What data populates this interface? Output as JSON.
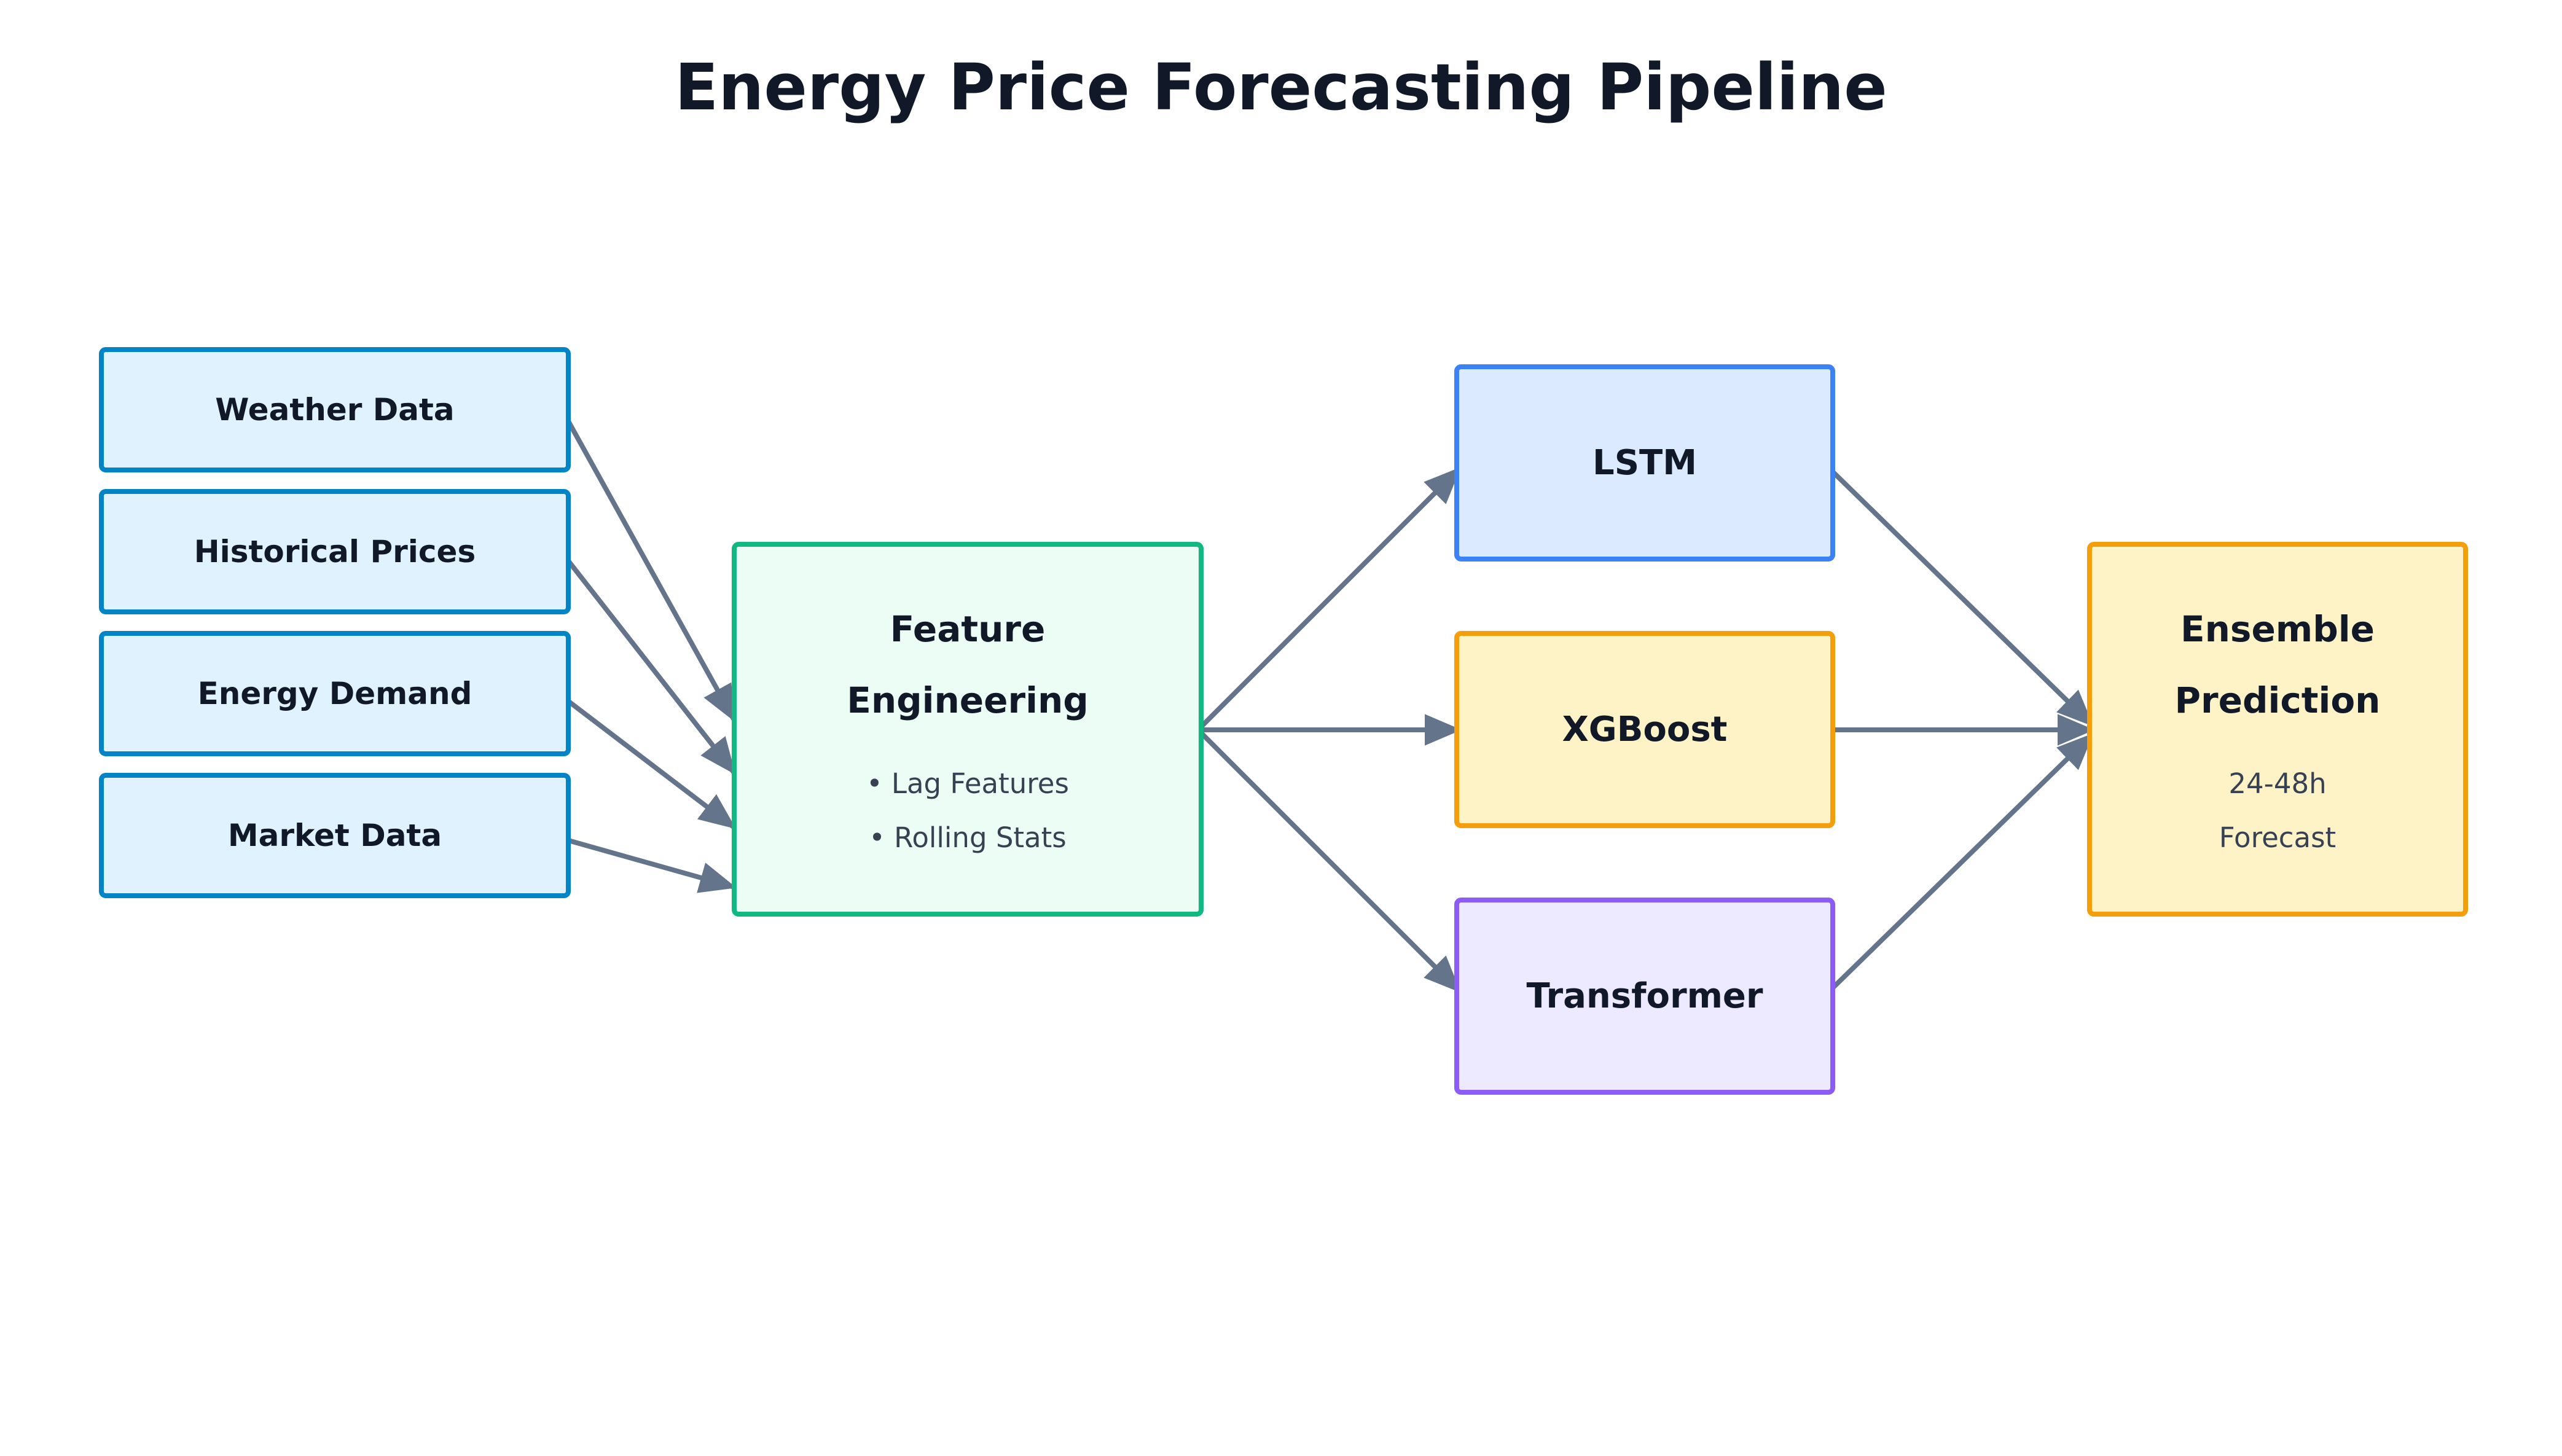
{
  "title": "Energy Price Forecasting Pipeline",
  "sources": [
    {
      "label": "Weather Data"
    },
    {
      "label": "Historical Prices"
    },
    {
      "label": "Energy Demand"
    },
    {
      "label": "Market Data"
    }
  ],
  "feature": {
    "lines": [
      "Feature",
      "Engineering"
    ],
    "details": [
      "• Lag Features",
      "• Rolling Stats"
    ]
  },
  "models": [
    {
      "label": "LSTM"
    },
    {
      "label": "XGBoost"
    },
    {
      "label": "Transformer"
    }
  ],
  "ensemble": {
    "lines": [
      "Ensemble",
      "Prediction"
    ],
    "details": [
      "24-48h",
      "Forecast"
    ]
  },
  "colors": {
    "title": "#111827",
    "arrow": "#64748b",
    "source_fill": "#e0f2fe",
    "source_border": "#0284c7",
    "feature_fill": "#ecfdf5",
    "feature_border": "#10b981",
    "lstm_fill": "#dbeafe",
    "lstm_border": "#3b82f6",
    "xgboost_fill": "#fef3c7",
    "xgboost_border": "#f59e0b",
    "transformer_fill": "#ede9fe",
    "transformer_border": "#8b5cf6",
    "ensemble_fill": "#fef3c7",
    "ensemble_border": "#f59e0b"
  }
}
